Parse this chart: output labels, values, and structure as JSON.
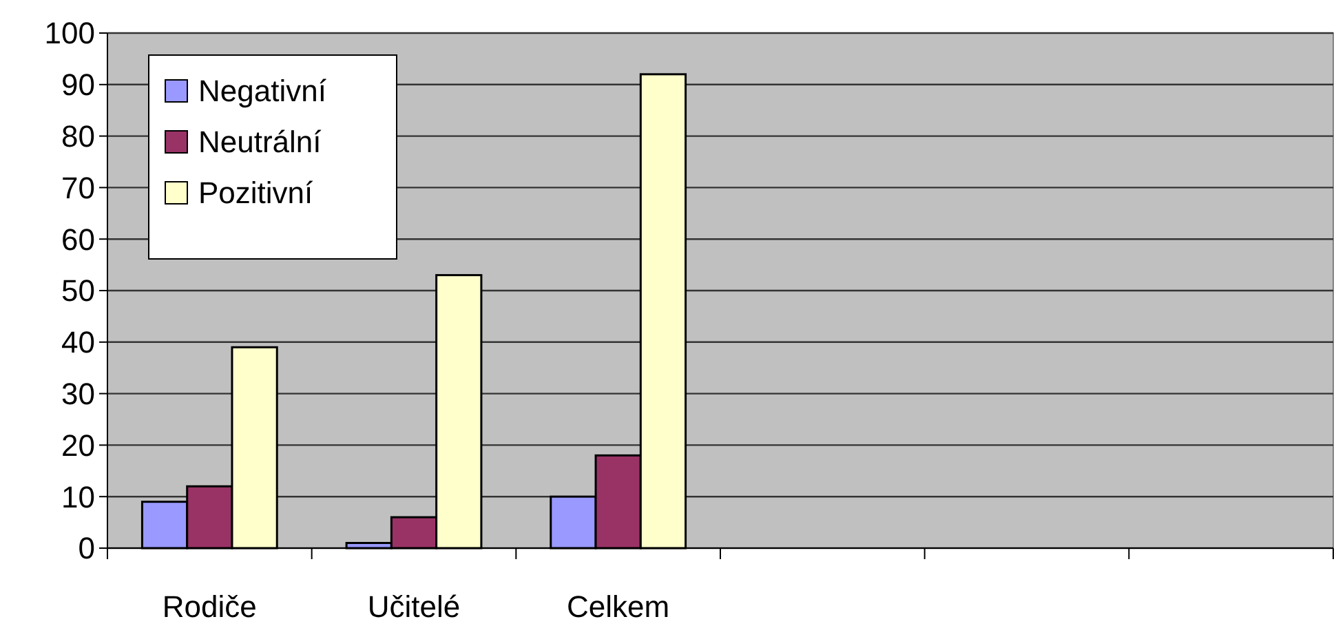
{
  "chart_data": {
    "type": "bar",
    "categories": [
      "Rodiče",
      "Učitelé",
      "Celkem",
      null,
      null,
      null
    ],
    "series": [
      {
        "name": "Negativní",
        "color": "#9999ff",
        "values": [
          9,
          1,
          10,
          null,
          null,
          null
        ]
      },
      {
        "name": "Neutrální",
        "color": "#993366",
        "values": [
          12,
          6,
          18,
          null,
          null,
          null
        ]
      },
      {
        "name": "Pozitivní",
        "color": "#ffffcc",
        "values": [
          39,
          53,
          92,
          null,
          null,
          null
        ]
      }
    ],
    "ylim": [
      0,
      100
    ],
    "yticks": [
      0,
      10,
      20,
      30,
      40,
      50,
      60,
      70,
      80,
      90,
      100
    ],
    "grid": "y",
    "legend": "top left"
  }
}
